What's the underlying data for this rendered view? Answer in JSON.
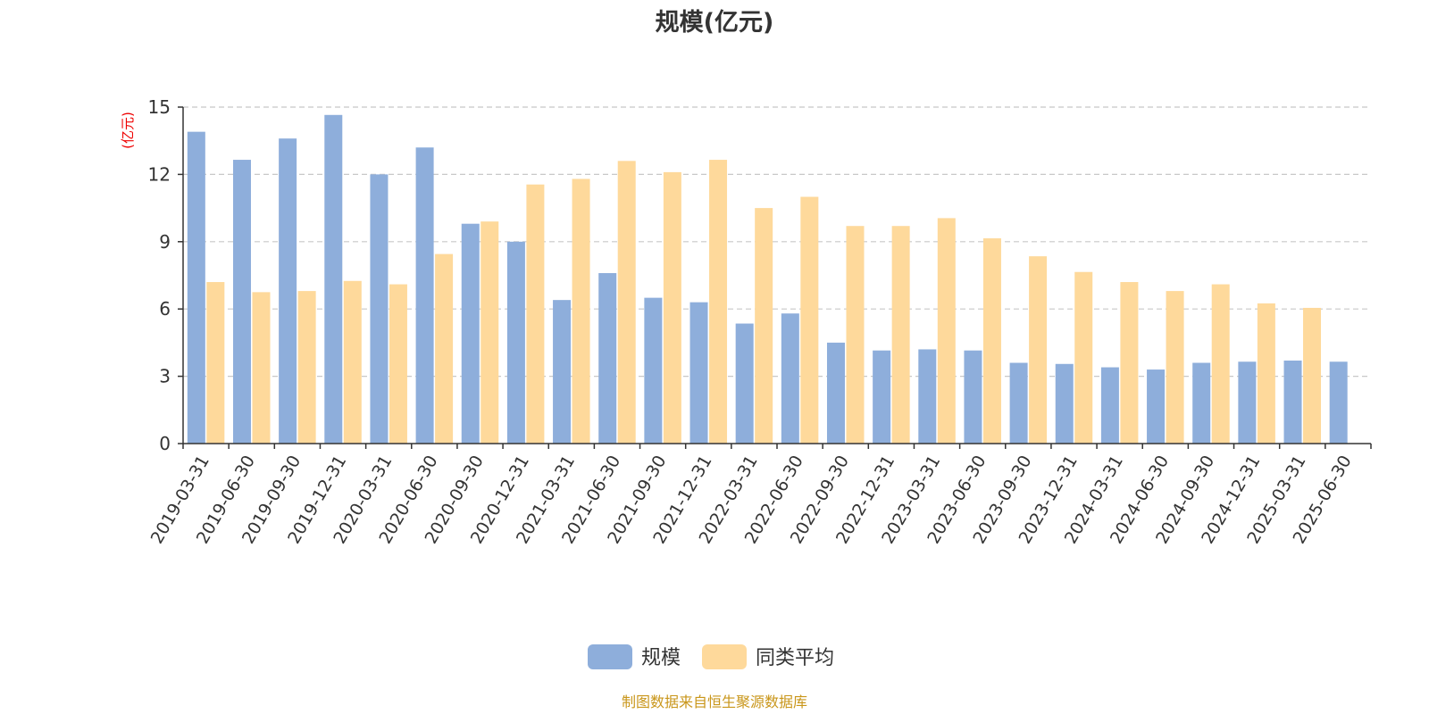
{
  "chart_data": {
    "type": "bar",
    "title": "规模(亿元)",
    "ylabel": "(亿元)",
    "xlabel": "",
    "ylim": [
      0,
      15
    ],
    "yticks": [
      0,
      3,
      6,
      9,
      12,
      15
    ],
    "grid": true,
    "legend_position": "bottom-center",
    "categories": [
      "2019-03-31",
      "2019-06-30",
      "2019-09-30",
      "2019-12-31",
      "2020-03-31",
      "2020-06-30",
      "2020-09-30",
      "2020-12-31",
      "2021-03-31",
      "2021-06-30",
      "2021-09-30",
      "2021-12-31",
      "2022-03-31",
      "2022-06-30",
      "2022-09-30",
      "2022-12-31",
      "2023-03-31",
      "2023-06-30",
      "2023-09-30",
      "2023-12-31",
      "2024-03-31",
      "2024-06-30",
      "2024-09-30",
      "2024-12-31",
      "2025-03-31",
      "2025-06-30"
    ],
    "series": [
      {
        "name": "规模",
        "color": "#8eaedb",
        "values": [
          13.9,
          12.65,
          13.6,
          14.65,
          12.0,
          13.2,
          9.8,
          9.0,
          6.4,
          7.6,
          6.5,
          6.3,
          5.35,
          5.8,
          4.5,
          4.15,
          4.2,
          4.15,
          3.6,
          3.55,
          3.4,
          3.3,
          3.6,
          3.65,
          3.7,
          3.65
        ]
      },
      {
        "name": "同类平均",
        "color": "#fed99b",
        "values": [
          7.2,
          6.75,
          6.8,
          7.25,
          7.1,
          8.45,
          9.9,
          11.55,
          11.8,
          12.6,
          12.1,
          12.65,
          10.5,
          11.0,
          9.7,
          9.7,
          10.05,
          9.15,
          8.35,
          7.65,
          7.2,
          6.8,
          7.1,
          6.25,
          6.05,
          null
        ]
      }
    ],
    "source_note": "制图数据来自恒生聚源数据库",
    "colors": {
      "axis_unit": "#ee0000",
      "source_note": "#c9961a",
      "text": "#333333",
      "grid": "#c8c8c8"
    }
  }
}
